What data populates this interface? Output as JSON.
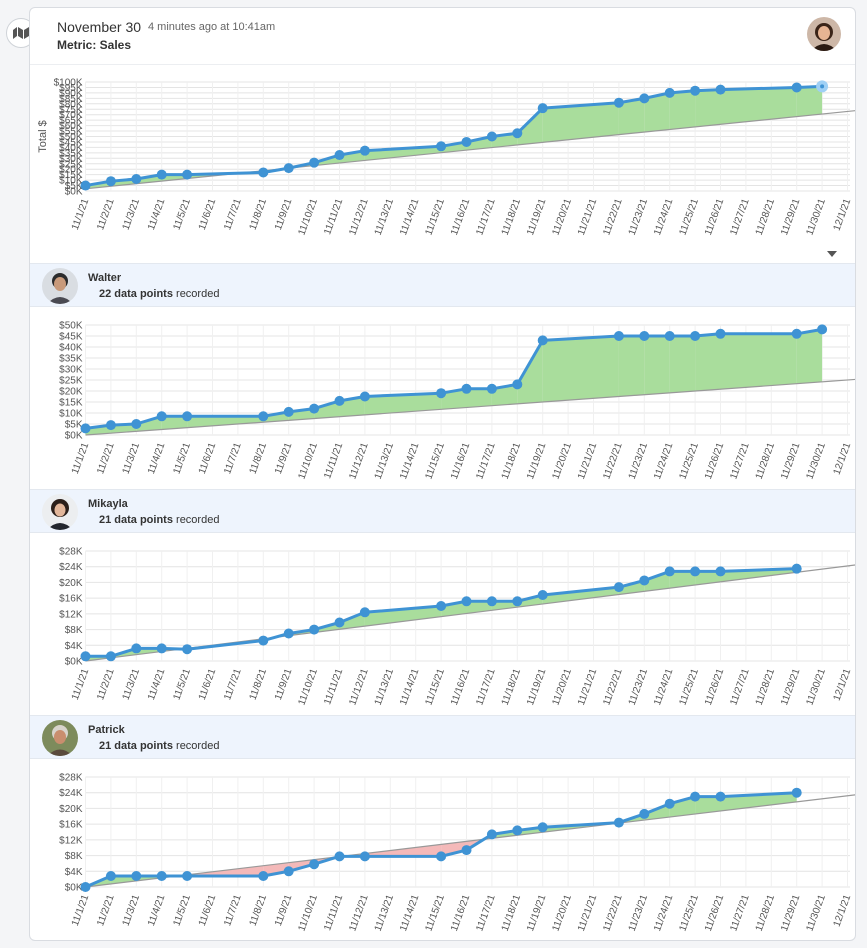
{
  "header": {
    "date": "November 30",
    "time": "4 minutes ago at 10:41am",
    "metric": "Metric: Sales"
  },
  "icons": {
    "menu": "building-map-icon",
    "dropdown": "caret-down-icon"
  },
  "colors": {
    "line": "#3f93d4",
    "gain": "#a9dd9c",
    "loss": "#f4b9b9",
    "trend": "#999999"
  },
  "x_categories": [
    "11/1/21",
    "11/2/21",
    "11/3/21",
    "11/4/21",
    "11/5/21",
    "11/6/21",
    "11/7/21",
    "11/8/21",
    "11/9/21",
    "11/10/21",
    "11/11/21",
    "11/12/21",
    "11/13/21",
    "11/14/21",
    "11/15/21",
    "11/16/21",
    "11/17/21",
    "11/18/21",
    "11/19/21",
    "11/20/21",
    "11/21/21",
    "11/22/21",
    "11/23/21",
    "11/24/21",
    "11/25/21",
    "11/26/21",
    "11/27/21",
    "11/28/21",
    "11/29/21",
    "11/30/21",
    "12/1/21"
  ],
  "users": [
    {
      "name": "Walter",
      "count": "22 data points",
      "suffix": "recorded"
    },
    {
      "name": "Mikayla",
      "count": "21 data points",
      "suffix": "recorded"
    },
    {
      "name": "Patrick",
      "count": "21 data points",
      "suffix": "recorded"
    }
  ],
  "chart_data": [
    {
      "type": "line",
      "ylabel": "Total $",
      "ylim": [
        0,
        100000
      ],
      "yticks": [
        "$0K",
        "$5K",
        "$10K",
        "$15K",
        "$20K",
        "$25K",
        "$30K",
        "$35K",
        "$40K",
        "$45K",
        "$50K",
        "$55K",
        "$60K",
        "$65K",
        "$70K",
        "$75K",
        "$80K",
        "$85K",
        "$90K",
        "$95K",
        "$100K"
      ],
      "series": [
        {
          "x": [
            0,
            1,
            2,
            3,
            4,
            7,
            8,
            9,
            10,
            11,
            14,
            15,
            16,
            17,
            18,
            21,
            22,
            23,
            24,
            25,
            28,
            29
          ],
          "y": [
            5000,
            9000,
            11000,
            15000,
            15000,
            17000,
            21000,
            26000,
            33000,
            37000,
            41000,
            45000,
            50000,
            53000,
            76000,
            81000,
            85000,
            90000,
            92000,
            93000,
            95000,
            96000
          ]
        }
      ],
      "trend": [
        [
          0,
          2000
        ],
        [
          30,
          73000
        ]
      ]
    },
    {
      "type": "line",
      "ylim": [
        0,
        50000
      ],
      "yticks": [
        "$0K",
        "$5K",
        "$10K",
        "$15K",
        "$20K",
        "$25K",
        "$30K",
        "$35K",
        "$40K",
        "$45K",
        "$50K"
      ],
      "series": [
        {
          "x": [
            0,
            1,
            2,
            3,
            4,
            7,
            8,
            9,
            10,
            11,
            14,
            15,
            16,
            17,
            18,
            21,
            22,
            23,
            24,
            25,
            28,
            29
          ],
          "y": [
            3000,
            4500,
            5000,
            8500,
            8500,
            8500,
            10500,
            12000,
            15500,
            17500,
            19000,
            21000,
            21000,
            23000,
            43000,
            45000,
            45000,
            45000,
            45000,
            46000,
            46000,
            48000
          ]
        }
      ],
      "trend": [
        [
          0,
          0
        ],
        [
          30,
          25000
        ]
      ]
    },
    {
      "type": "line",
      "ylim": [
        0,
        28000
      ],
      "yticks": [
        "$0K",
        "$4K",
        "$8K",
        "$12K",
        "$16K",
        "$20K",
        "$24K",
        "$28K"
      ],
      "series": [
        {
          "x": [
            0,
            1,
            2,
            3,
            4,
            7,
            8,
            9,
            10,
            11,
            14,
            15,
            16,
            17,
            18,
            21,
            22,
            23,
            24,
            25,
            28
          ],
          "y": [
            1200,
            1200,
            3200,
            3200,
            3000,
            5200,
            7000,
            8000,
            9800,
            12400,
            14000,
            15200,
            15200,
            15200,
            16800,
            18800,
            20500,
            22800,
            22800,
            22800,
            23500
          ]
        }
      ],
      "trend": [
        [
          0,
          0
        ],
        [
          31,
          25000
        ]
      ]
    },
    {
      "type": "line",
      "ylim": [
        0,
        28000
      ],
      "yticks": [
        "$0K",
        "$4K",
        "$8K",
        "$12K",
        "$16K",
        "$20K",
        "$24K",
        "$28K"
      ],
      "series": [
        {
          "x": [
            0,
            1,
            2,
            3,
            4,
            7,
            8,
            9,
            10,
            11,
            14,
            15,
            16,
            17,
            18,
            21,
            22,
            23,
            24,
            25,
            28
          ],
          "y": [
            0,
            2800,
            2800,
            2800,
            2800,
            2800,
            4000,
            5800,
            7800,
            7800,
            7800,
            9400,
            13400,
            14400,
            15200,
            16400,
            18600,
            21200,
            23000,
            23000,
            24000
          ]
        }
      ],
      "trend": [
        [
          0,
          0
        ],
        [
          31,
          24000
        ]
      ]
    }
  ]
}
